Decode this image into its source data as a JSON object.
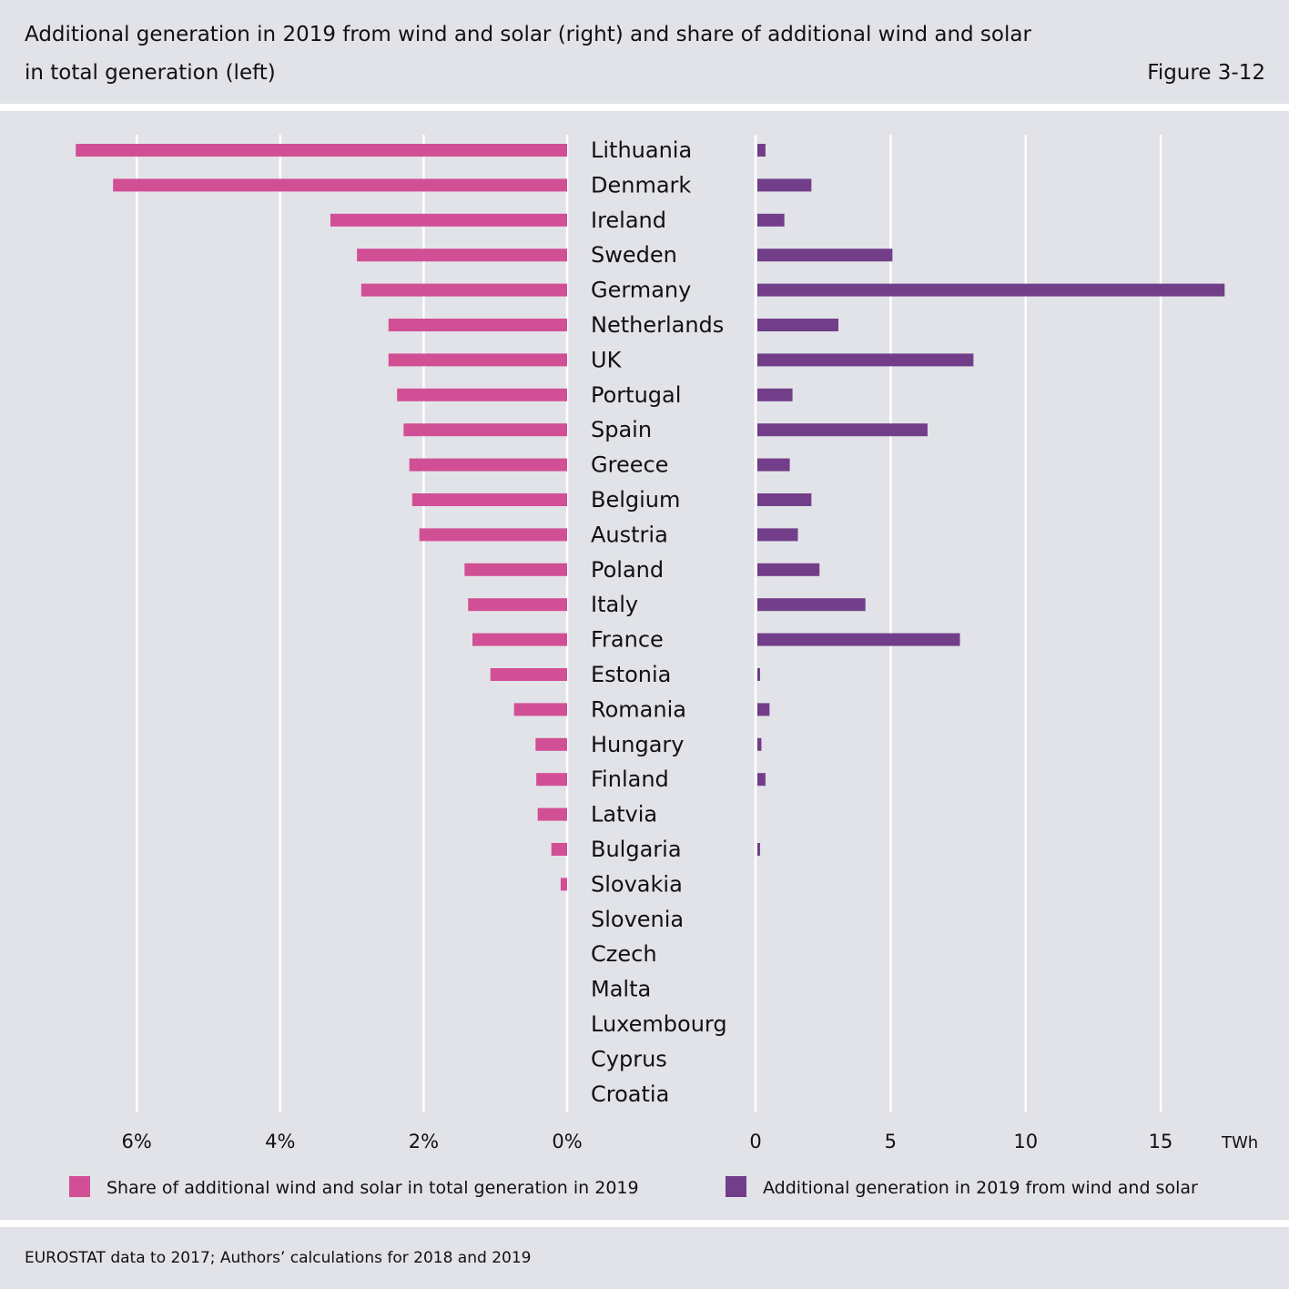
{
  "header": {
    "title_line1": "Additional generation in 2019 from wind and solar (right) and share of additional wind and solar",
    "title_line2": "in total generation (left)",
    "figure_label": "Figure 3-12"
  },
  "footer": {
    "source": "EUROSTAT data to 2017; Authors’ calculations for 2018 and 2019"
  },
  "colors": {
    "share": "#d14f95",
    "generation": "#723e89",
    "background": "#e2e3e8",
    "grid": "#ffffff"
  },
  "chart_data": [
    {
      "type": "bar",
      "orientation": "horizontal-reversed",
      "side": "left",
      "title": "Share of additional wind and solar in total generation in 2019",
      "unit": "%",
      "xlim": [
        0,
        7
      ],
      "ticks": [
        0,
        2,
        4,
        6
      ],
      "tick_labels": [
        "0%",
        "2%",
        "4%",
        "6%"
      ],
      "grid": true,
      "categories": [
        "Lithuania",
        "Denmark",
        "Ireland",
        "Sweden",
        "Germany",
        "Netherlands",
        "UK",
        "Portugal",
        "Spain",
        "Greece",
        "Belgium",
        "Austria",
        "Poland",
        "Italy",
        "France",
        "Estonia",
        "Romania",
        "Hungary",
        "Finland",
        "Latvia",
        "Bulgaria",
        "Slovakia",
        "Slovenia",
        "Czech",
        "Malta",
        "Luxembourg",
        "Cyprus",
        "Croatia"
      ],
      "values": [
        6.85,
        6.33,
        3.3,
        2.93,
        2.87,
        2.49,
        2.49,
        2.37,
        2.28,
        2.2,
        2.16,
        2.06,
        1.43,
        1.38,
        1.32,
        1.07,
        0.74,
        0.44,
        0.43,
        0.41,
        0.22,
        0.09,
        0,
        0,
        0,
        0,
        0,
        0
      ],
      "legend_label": "Share of additional wind and solar in total generation in 2019"
    },
    {
      "type": "bar",
      "orientation": "horizontal",
      "side": "right",
      "title": "Additional generation in 2019 from wind and solar",
      "unit": "TWh",
      "xlim": [
        0,
        18
      ],
      "ticks": [
        0,
        5,
        10,
        15
      ],
      "tick_labels": [
        "0",
        "5",
        "10",
        "15"
      ],
      "axis_unit_label": "TWh",
      "grid": true,
      "categories": [
        "Lithuania",
        "Denmark",
        "Ireland",
        "Sweden",
        "Germany",
        "Netherlands",
        "UK",
        "Portugal",
        "Spain",
        "Greece",
        "Belgium",
        "Austria",
        "Poland",
        "Italy",
        "France",
        "Estonia",
        "Romania",
        "Hungary",
        "Finland",
        "Latvia",
        "Bulgaria",
        "Slovakia",
        "Slovenia",
        "Czech",
        "Malta",
        "Luxembourg",
        "Cyprus",
        "Croatia"
      ],
      "values": [
        0.3,
        2.0,
        1.0,
        5.0,
        17.3,
        3.0,
        8.0,
        1.3,
        6.3,
        1.2,
        2.0,
        1.5,
        2.3,
        4.0,
        7.5,
        0.1,
        0.45,
        0.15,
        0.3,
        0,
        0.1,
        0,
        0,
        0,
        0,
        0,
        0,
        0
      ],
      "legend_label": "Additional generation in 2019 from wind and solar"
    }
  ],
  "legend": {
    "items": [
      {
        "label": "Share of additional wind and solar in total generation in 2019",
        "color": "#d14f95"
      },
      {
        "label": "Additional generation in 2019 from wind and solar",
        "color": "#723e89"
      }
    ]
  }
}
